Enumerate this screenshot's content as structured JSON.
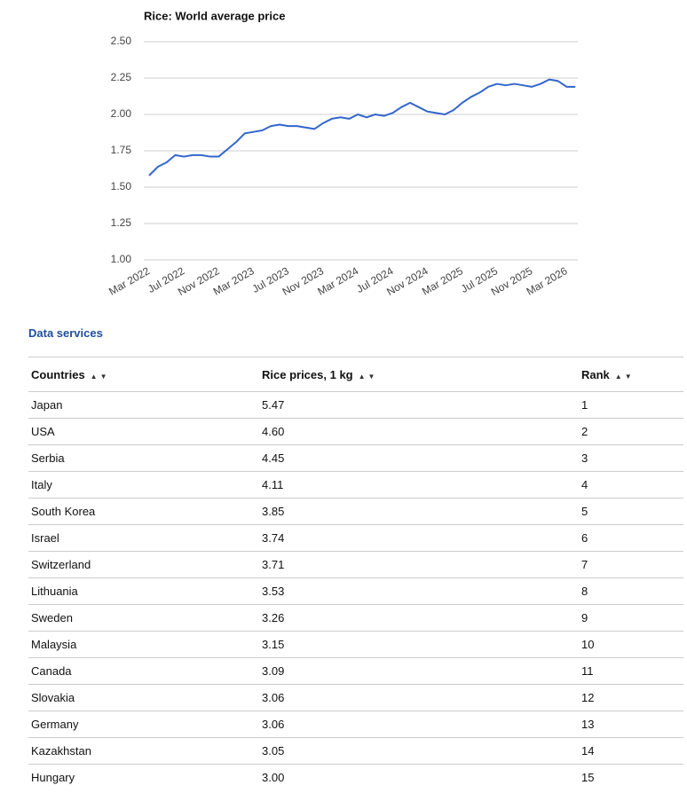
{
  "chart_data": {
    "type": "line",
    "title": "Rice: World average price",
    "categories": [
      "Mar 2022",
      null,
      null,
      null,
      "Jul 2022",
      null,
      null,
      null,
      "Nov 2022",
      null,
      null,
      null,
      "Mar 2023",
      null,
      null,
      null,
      "Jul 2023",
      null,
      null,
      null,
      "Nov 2023",
      null,
      null,
      null,
      "Mar 2024",
      null,
      null,
      null,
      "Jul 2024",
      null,
      null,
      null,
      "Nov 2024",
      null,
      null,
      null,
      "Mar 2025",
      null,
      null,
      null,
      "Jul 2025",
      null,
      null,
      null,
      "Nov 2025",
      null,
      null,
      null,
      "Mar 2026",
      null
    ],
    "values": [
      1.58,
      1.64,
      1.67,
      1.72,
      1.71,
      1.72,
      1.72,
      1.71,
      1.71,
      1.76,
      1.81,
      1.87,
      1.88,
      1.89,
      1.92,
      1.93,
      1.92,
      1.92,
      1.91,
      1.9,
      1.94,
      1.97,
      1.98,
      1.97,
      2.0,
      1.98,
      2.0,
      1.99,
      2.01,
      2.05,
      2.08,
      2.05,
      2.02,
      2.01,
      2.0,
      2.03,
      2.08,
      2.12,
      2.15,
      2.19,
      2.21,
      2.2,
      2.21,
      2.2,
      2.19,
      2.21,
      2.24,
      2.23,
      2.19,
      2.19
    ],
    "color": "#3366cc",
    "ylim": [
      1.0,
      2.5
    ],
    "yticks": [
      {
        "value": 1.0,
        "label": "1.00"
      },
      {
        "value": 1.25,
        "label": "1.25"
      },
      {
        "value": 1.5,
        "label": "1.50"
      },
      {
        "value": 1.75,
        "label": "1.75"
      },
      {
        "value": 2.0,
        "label": "2.00"
      },
      {
        "value": 2.25,
        "label": "2.25"
      },
      {
        "value": 2.5,
        "label": "2.50"
      }
    ],
    "grid": true
  },
  "link": "Data services",
  "table": {
    "headers": [
      "Countries",
      "Rice prices, 1 kg",
      "Rank"
    ],
    "rows": [
      [
        "Japan",
        "5.47",
        "1"
      ],
      [
        "USA",
        "4.60",
        "2"
      ],
      [
        "Serbia",
        "4.45",
        "3"
      ],
      [
        "Italy",
        "4.11",
        "4"
      ],
      [
        "South Korea",
        "3.85",
        "5"
      ],
      [
        "Israel",
        "3.74",
        "6"
      ],
      [
        "Switzerland",
        "3.71",
        "7"
      ],
      [
        "Lithuania",
        "3.53",
        "8"
      ],
      [
        "Sweden",
        "3.26",
        "9"
      ],
      [
        "Malaysia",
        "3.15",
        "10"
      ],
      [
        "Canada",
        "3.09",
        "11"
      ],
      [
        "Slovakia",
        "3.06",
        "12"
      ],
      [
        "Germany",
        "3.06",
        "13"
      ],
      [
        "Kazakhstan",
        "3.05",
        "14"
      ],
      [
        "Hungary",
        "3.00",
        "15"
      ]
    ]
  }
}
